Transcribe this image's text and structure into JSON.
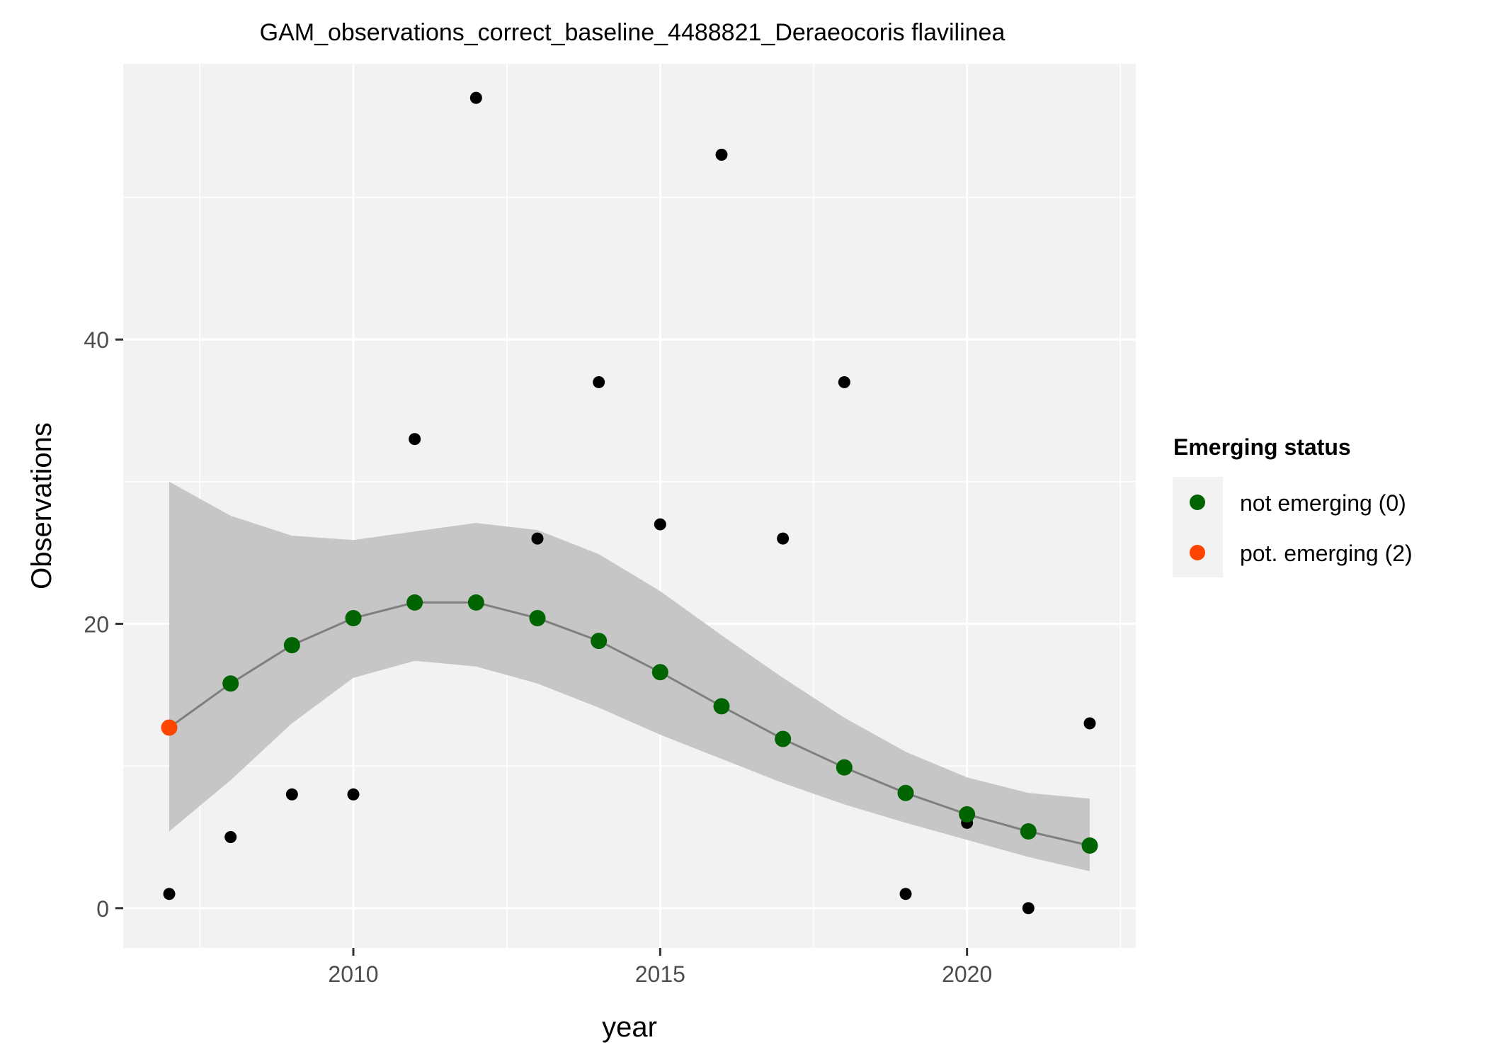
{
  "chart_data": {
    "type": "scatter",
    "title": "GAM_observations_correct_baseline_4488821_Deraeocoris flavilinea",
    "xlabel": "year",
    "ylabel": "Observations",
    "xlim": [
      2006.25,
      2022.75
    ],
    "ylim": [
      -2.8,
      59.4
    ],
    "x_ticks": [
      2010,
      2015,
      2020
    ],
    "x_tick_labels": [
      "2010",
      "2015",
      "2020"
    ],
    "y_ticks": [
      0,
      20,
      40
    ],
    "y_tick_labels": [
      "0",
      "20",
      "40"
    ],
    "x_minor_ticks": [
      2007.5,
      2012.5,
      2017.5,
      2022.5
    ],
    "y_minor_ticks": [
      10,
      30,
      50
    ],
    "grid": true,
    "legend": {
      "title": "Emerging status",
      "position": "right",
      "entries": [
        {
          "label": "not emerging (0)",
          "color": "#006400"
        },
        {
          "label": "pot. emerging (2)",
          "color": "#FF4500"
        }
      ]
    },
    "observed": {
      "color": "#000000",
      "x": [
        2007,
        2008,
        2009,
        2010,
        2011,
        2012,
        2013,
        2014,
        2015,
        2016,
        2017,
        2018,
        2019,
        2020,
        2021,
        2022
      ],
      "y": [
        1,
        5,
        8,
        8,
        33,
        57,
        26,
        37,
        27,
        53,
        26,
        37,
        1,
        6,
        0,
        13
      ]
    },
    "fitted": {
      "line_color": "#7f7f7f",
      "band_color": "#c6c6c6",
      "x": [
        2007,
        2008,
        2009,
        2010,
        2011,
        2012,
        2013,
        2014,
        2015,
        2016,
        2017,
        2018,
        2019,
        2020,
        2021,
        2022
      ],
      "y": [
        12.7,
        15.8,
        18.5,
        20.4,
        21.5,
        21.5,
        20.4,
        18.8,
        16.6,
        14.2,
        11.9,
        9.9,
        8.1,
        6.6,
        5.4,
        4.4
      ],
      "lower": [
        5.4,
        9.0,
        13.0,
        16.2,
        17.4,
        17.0,
        15.8,
        14.1,
        12.2,
        10.5,
        8.8,
        7.3,
        6.0,
        4.8,
        3.6,
        2.6
      ],
      "upper": [
        30.0,
        27.6,
        26.2,
        25.9,
        26.5,
        27.1,
        26.6,
        24.9,
        22.3,
        19.2,
        16.2,
        13.4,
        11.0,
        9.2,
        8.1,
        7.7
      ],
      "status": [
        2,
        0,
        0,
        0,
        0,
        0,
        0,
        0,
        0,
        0,
        0,
        0,
        0,
        0,
        0,
        0
      ]
    }
  }
}
